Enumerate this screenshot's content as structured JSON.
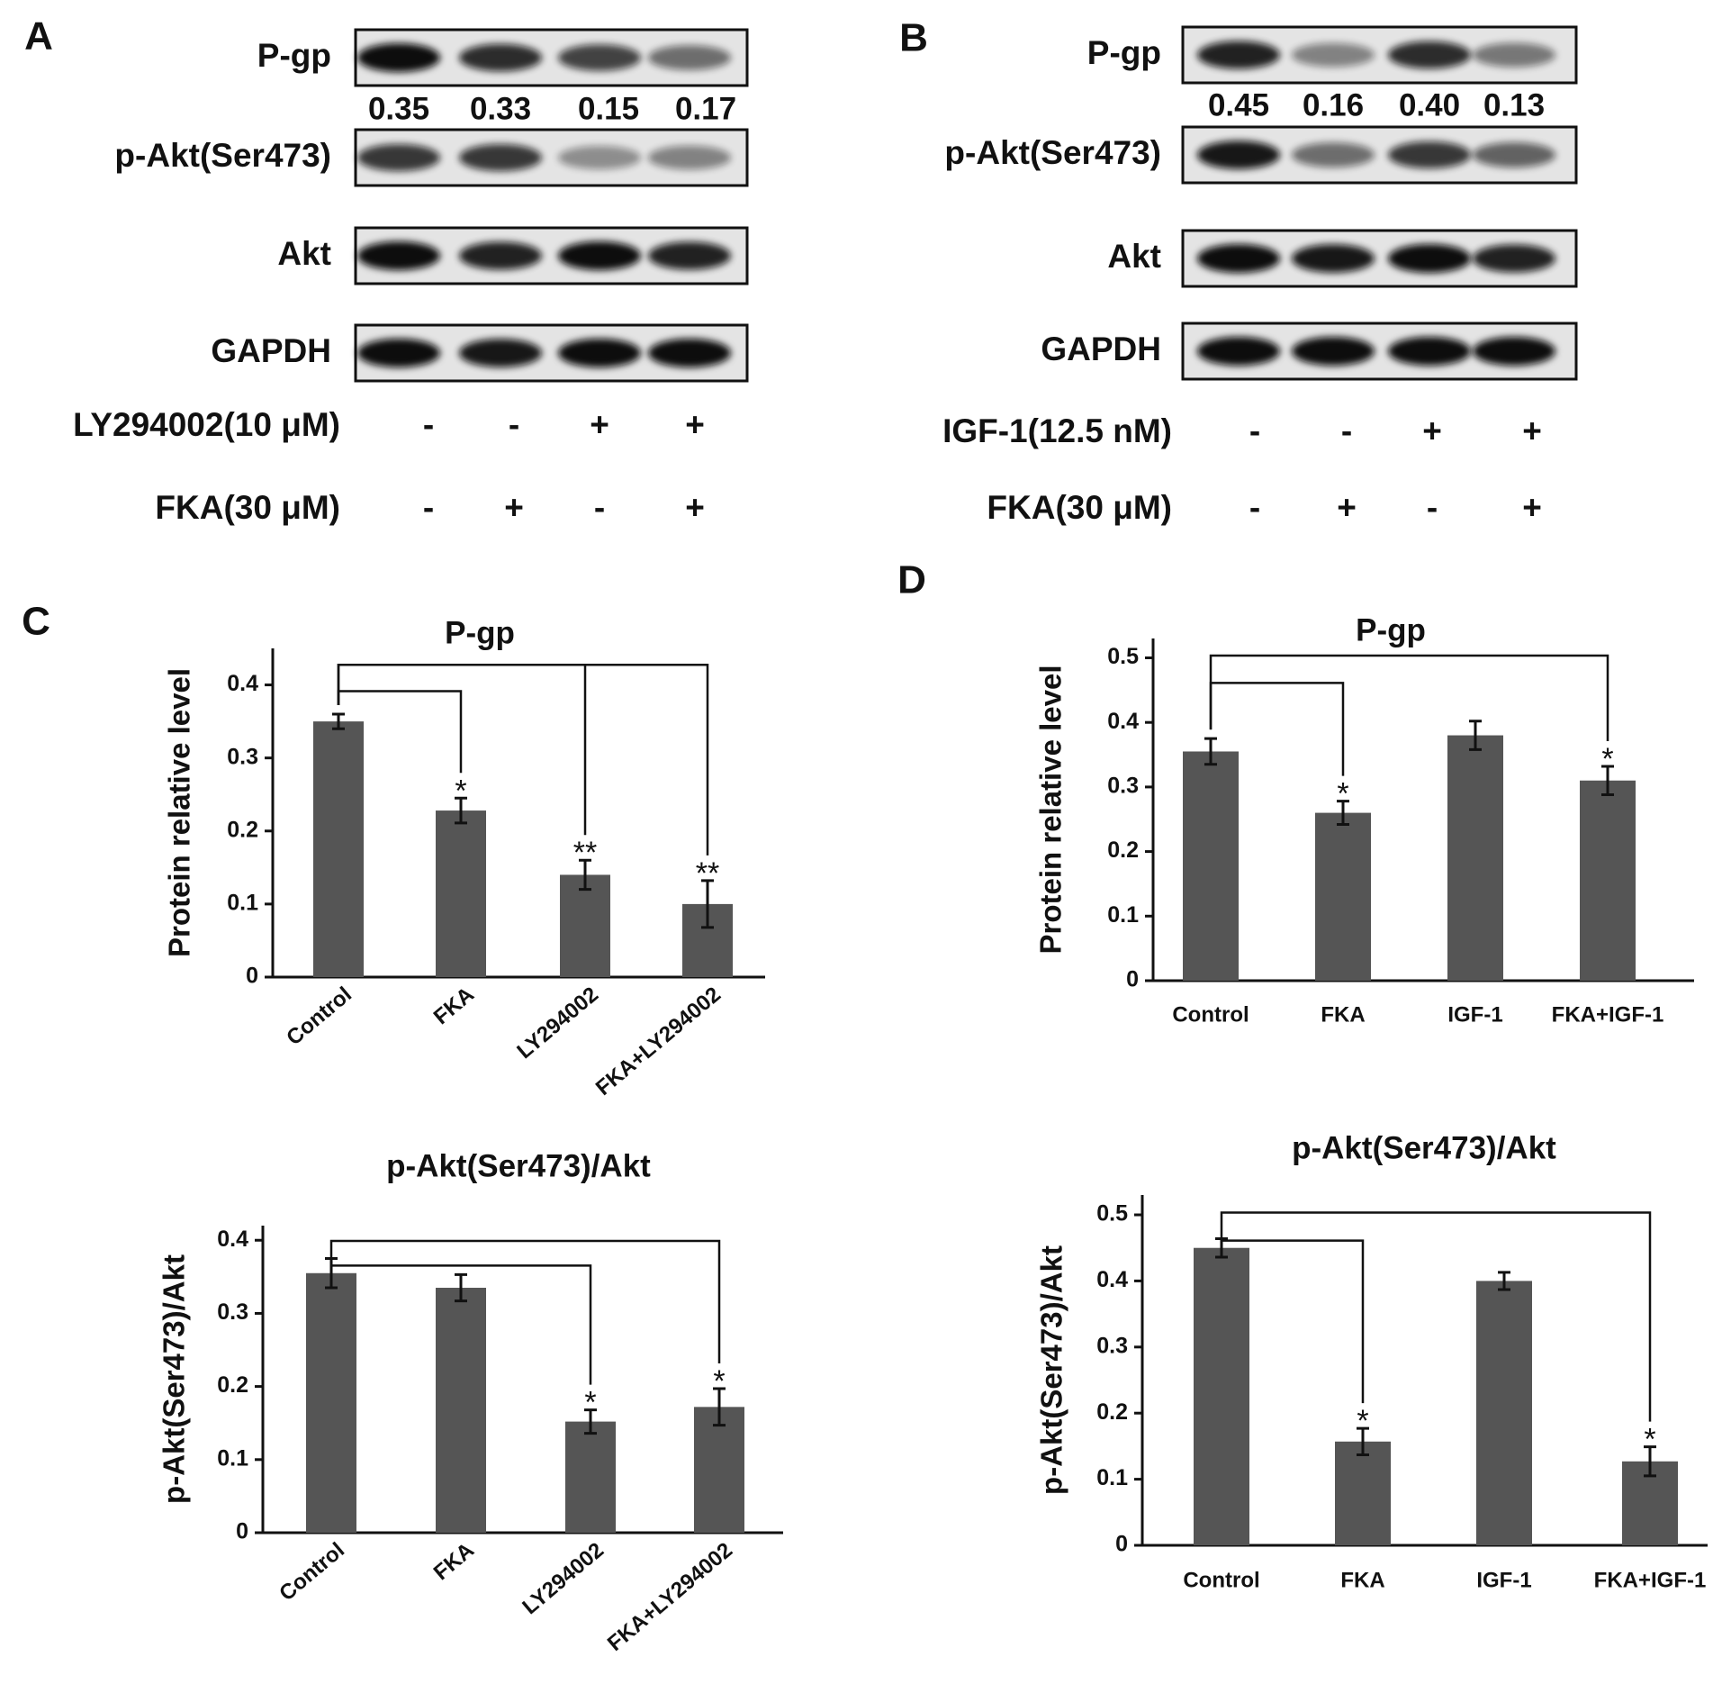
{
  "blots": [
    {
      "label": "A",
      "rows": [
        "P-gp",
        "p-Akt(Ser473)",
        "Akt",
        "GAPDH"
      ],
      "quantification": [
        "0.35",
        "0.33",
        "0.15",
        "0.17"
      ],
      "treatments": [
        {
          "name": "LY294002(10 μM)",
          "signs": [
            "-",
            "-",
            "+",
            "+"
          ]
        },
        {
          "name": "FKA(30 μM)",
          "signs": [
            "-",
            "+",
            "-",
            "+"
          ]
        }
      ]
    },
    {
      "label": "B",
      "rows": [
        "P-gp",
        "p-Akt(Ser473)",
        "Akt",
        "GAPDH"
      ],
      "quantification": [
        "0.45",
        "0.16",
        "0.40",
        "0.13"
      ],
      "treatments": [
        {
          "name": "IGF-1(12.5 nM)",
          "signs": [
            "-",
            "-",
            "+",
            "+"
          ]
        },
        {
          "name": "FKA(30 μM)",
          "signs": [
            "-",
            "+",
            "-",
            "+"
          ]
        }
      ]
    }
  ],
  "chart_data": [
    {
      "type": "bar",
      "panel": "C",
      "title": "P-gp",
      "y_label": "Protein relative level",
      "categories": [
        "Control",
        "FKA",
        "LY294002",
        "FKA+LY294002"
      ],
      "values": [
        0.35,
        0.228,
        0.14,
        0.1
      ],
      "errors": [
        0.01,
        0.017,
        0.02,
        0.032
      ],
      "significance": [
        null,
        "*",
        "**",
        "**"
      ],
      "color": "#555555",
      "ylim": [
        0,
        0.45
      ],
      "yticks": [
        0,
        0.1,
        0.2,
        0.3,
        0.4
      ]
    },
    {
      "type": "bar",
      "title": "p-Akt(Ser473)/Akt",
      "y_label": "p-Akt(Ser473)/Akt",
      "categories": [
        "Control",
        "FKA",
        "LY294002",
        "FKA+LY294002"
      ],
      "values": [
        0.355,
        0.335,
        0.152,
        0.172
      ],
      "errors": [
        0.02,
        0.018,
        0.016,
        0.025
      ],
      "significance": [
        null,
        null,
        "*",
        "*"
      ],
      "color": "#555555",
      "ylim": [
        0,
        0.42
      ],
      "yticks": [
        0,
        0.1,
        0.2,
        0.3,
        0.4
      ]
    },
    {
      "type": "bar",
      "panel": "D",
      "title": "P-gp",
      "y_label": "Protein relative level",
      "categories": [
        "Control",
        "FKA",
        "IGF-1",
        "FKA+IGF-1"
      ],
      "values": [
        0.355,
        0.26,
        0.38,
        0.31
      ],
      "errors": [
        0.02,
        0.018,
        0.022,
        0.022
      ],
      "significance": [
        null,
        "*",
        null,
        "*"
      ],
      "color": "#555555",
      "ylim": [
        0,
        0.53
      ],
      "yticks": [
        0,
        0.1,
        0.2,
        0.3,
        0.4,
        0.5
      ]
    },
    {
      "type": "bar",
      "title": "p-Akt(Ser473)/Akt",
      "y_label": "p-Akt(Ser473)/Akt",
      "categories": [
        "Control",
        "FKA",
        "IGF-1",
        "FKA+IGF-1"
      ],
      "values": [
        0.45,
        0.157,
        0.4,
        0.127
      ],
      "errors": [
        0.014,
        0.02,
        0.013,
        0.022
      ],
      "significance": [
        null,
        "*",
        null,
        "*"
      ],
      "color": "#555555",
      "ylim": [
        0,
        0.53
      ],
      "yticks": [
        0,
        0.1,
        0.2,
        0.3,
        0.4,
        0.5
      ]
    }
  ]
}
